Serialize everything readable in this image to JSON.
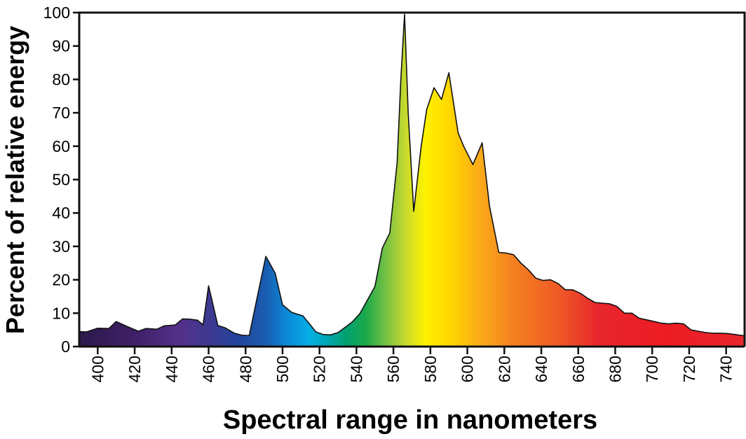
{
  "chart_data": {
    "type": "area",
    "title": "",
    "xlabel": "Spectral range in nanometers",
    "ylabel": "Percent of relative energy",
    "xlim": [
      390,
      750
    ],
    "ylim": [
      0,
      100
    ],
    "x_ticks": [
      "400",
      "420",
      "440",
      "460",
      "480",
      "500",
      "520",
      "540",
      "560",
      "580",
      "600",
      "620",
      "640",
      "660",
      "680",
      "700",
      "720",
      "740"
    ],
    "y_ticks": [
      "0",
      "10",
      "20",
      "30",
      "40",
      "50",
      "60",
      "70",
      "80",
      "90",
      "100"
    ],
    "grid": false,
    "legend": "none",
    "fill": "visible-spectrum gradient",
    "series": [
      {
        "x": [
          390,
          394,
          400,
          406,
          410,
          416,
          422,
          426,
          432,
          436,
          442,
          446,
          450,
          454,
          457,
          460,
          465,
          469,
          474,
          478,
          482,
          486,
          491,
          496,
          500,
          505,
          511,
          515,
          518,
          522,
          526,
          530,
          534,
          538,
          542,
          546,
          550,
          554,
          558,
          562,
          564,
          566,
          568,
          571,
          575,
          578,
          582,
          586,
          590,
          595,
          598,
          603,
          608,
          612,
          617,
          621,
          625,
          629,
          633,
          637,
          641,
          645,
          649,
          653,
          657,
          661,
          665,
          669,
          673,
          677,
          681,
          685,
          689,
          693,
          697,
          701,
          705,
          709,
          713,
          717,
          721,
          725,
          729,
          733,
          737,
          741,
          745,
          750
        ],
        "y": [
          4.5,
          4.4,
          5.5,
          5.4,
          7.5,
          6.0,
          4.6,
          5.4,
          5.2,
          6.2,
          6.5,
          8.3,
          8.2,
          7.9,
          6.5,
          18.2,
          6.3,
          5.6,
          4.0,
          3.4,
          3.3,
          14.0,
          27.0,
          22.0,
          12.5,
          10.2,
          9.2,
          6.5,
          4.4,
          3.6,
          3.5,
          4.2,
          5.8,
          7.5,
          10.0,
          14.0,
          18.0,
          29.5,
          34.0,
          55.0,
          80.0,
          99.5,
          70.0,
          40.5,
          60.0,
          71.0,
          77.5,
          74.0,
          82.0,
          64.0,
          60.0,
          54.5,
          61.0,
          42.0,
          28.2,
          28.0,
          27.5,
          25.0,
          23.0,
          20.5,
          19.8,
          20.0,
          18.9,
          17.0,
          17.0,
          16.0,
          14.5,
          13.2,
          13.0,
          12.8,
          12.0,
          10.0,
          10.0,
          8.5,
          8.0,
          7.5,
          7.0,
          6.8,
          7.0,
          6.8,
          5.0,
          4.6,
          4.2,
          4.0,
          4.0,
          3.9,
          3.6,
          3.2
        ]
      }
    ]
  }
}
